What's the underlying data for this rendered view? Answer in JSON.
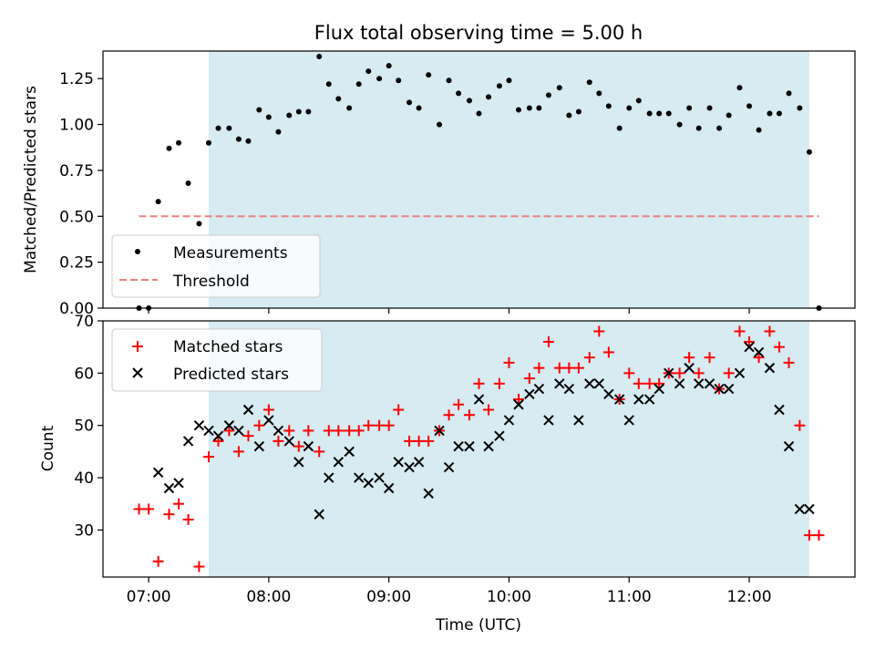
{
  "chart_data": [
    {
      "type": "scatter",
      "title": "Flux total observing time = 5.00 h",
      "xlabel": "",
      "ylabel": "Matched/Predicted stars",
      "xlim": [
        6.62,
        12.88
      ],
      "ylim": [
        0,
        1.4
      ],
      "yticks": [
        "0.00",
        "0.25",
        "0.50",
        "0.75",
        "1.00",
        "1.25"
      ],
      "ytick_values": [
        0,
        0.25,
        0.5,
        0.75,
        1.0,
        1.25
      ],
      "shaded_region": [
        7.5,
        12.5
      ],
      "legend_placement": "lower-left",
      "series": [
        {
          "name": "Measurements",
          "marker": "dot",
          "color": "#000000",
          "x": [
            6.92,
            7.0,
            7.08,
            7.17,
            7.25,
            7.33,
            7.42,
            7.5,
            7.58,
            7.67,
            7.75,
            7.83,
            7.92,
            8.0,
            8.08,
            8.17,
            8.25,
            8.33,
            8.42,
            8.5,
            8.58,
            8.67,
            8.75,
            8.83,
            8.92,
            9.0,
            9.08,
            9.17,
            9.25,
            9.33,
            9.42,
            9.5,
            9.58,
            9.67,
            9.75,
            9.83,
            9.92,
            10.0,
            10.08,
            10.17,
            10.25,
            10.33,
            10.42,
            10.5,
            10.58,
            10.67,
            10.75,
            10.83,
            10.92,
            11.0,
            11.08,
            11.17,
            11.25,
            11.33,
            11.42,
            11.5,
            11.58,
            11.67,
            11.75,
            11.83,
            11.92,
            12.0,
            12.08,
            12.17,
            12.25,
            12.33,
            12.42,
            12.5,
            12.58
          ],
          "y": [
            0.0,
            0.0,
            0.58,
            0.87,
            0.9,
            0.68,
            0.46,
            0.9,
            0.98,
            0.98,
            0.92,
            0.91,
            1.08,
            1.04,
            0.96,
            1.05,
            1.07,
            1.07,
            1.37,
            1.22,
            1.14,
            1.09,
            1.22,
            1.29,
            1.25,
            1.32,
            1.24,
            1.12,
            1.09,
            1.27,
            1.0,
            1.24,
            1.17,
            1.13,
            1.06,
            1.15,
            1.21,
            1.24,
            1.08,
            1.09,
            1.09,
            1.16,
            1.2,
            1.05,
            1.07,
            1.23,
            1.17,
            1.1,
            0.98,
            1.09,
            1.13,
            1.06,
            1.06,
            1.06,
            1.0,
            1.09,
            0.98,
            1.09,
            0.98,
            1.05,
            1.2,
            1.1,
            0.97,
            1.06,
            1.06,
            1.17,
            1.09,
            0.85,
            0.0
          ]
        },
        {
          "name": "Threshold",
          "marker": "dashed-line",
          "color": "#f08080",
          "x": [
            6.92,
            12.58
          ],
          "y": [
            0.5,
            0.5
          ]
        }
      ]
    },
    {
      "type": "scatter",
      "title": "",
      "xlabel": "Time (UTC)",
      "ylabel": "Count",
      "xlim": [
        6.62,
        12.88
      ],
      "ylim": [
        21,
        70
      ],
      "xticks": [
        "07:00",
        "08:00",
        "09:00",
        "10:00",
        "11:00",
        "12:00"
      ],
      "xtick_values": [
        7,
        8,
        9,
        10,
        11,
        12
      ],
      "yticks": [
        "30",
        "40",
        "50",
        "60",
        "70"
      ],
      "ytick_values": [
        30,
        40,
        50,
        60,
        70
      ],
      "shaded_region": [
        7.5,
        12.5
      ],
      "legend_placement": "upper-left",
      "series": [
        {
          "name": "Matched stars",
          "marker": "plus",
          "color": "#ff0000",
          "x": [
            6.92,
            7.0,
            7.08,
            7.17,
            7.25,
            7.33,
            7.42,
            7.5,
            7.58,
            7.67,
            7.75,
            7.83,
            7.92,
            8.0,
            8.08,
            8.17,
            8.25,
            8.33,
            8.42,
            8.5,
            8.58,
            8.67,
            8.75,
            8.83,
            8.92,
            9.0,
            9.08,
            9.17,
            9.25,
            9.33,
            9.42,
            9.5,
            9.58,
            9.67,
            9.75,
            9.83,
            9.92,
            10.0,
            10.08,
            10.17,
            10.25,
            10.33,
            10.42,
            10.5,
            10.58,
            10.67,
            10.75,
            10.83,
            10.92,
            11.0,
            11.08,
            11.17,
            11.25,
            11.33,
            11.42,
            11.5,
            11.58,
            11.67,
            11.75,
            11.83,
            11.92,
            12.0,
            12.08,
            12.17,
            12.25,
            12.33,
            12.42,
            12.5,
            12.58
          ],
          "y": [
            34,
            34,
            24,
            33,
            35,
            32,
            23,
            44,
            47,
            49,
            45,
            48,
            50,
            53,
            47,
            49,
            46,
            49,
            45,
            49,
            49,
            49,
            49,
            50,
            50,
            50,
            53,
            47,
            47,
            47,
            49,
            52,
            54,
            52,
            58,
            53,
            58,
            62,
            55,
            59,
            61,
            66,
            61,
            61,
            61,
            63,
            68,
            64,
            55,
            60,
            58,
            58,
            58,
            60,
            60,
            63,
            60,
            63,
            57,
            60,
            68,
            66,
            63,
            68,
            65,
            62,
            50,
            29,
            29
          ]
        },
        {
          "name": "Predicted stars",
          "marker": "x",
          "color": "#000000",
          "x": [
            7.08,
            7.17,
            7.25,
            7.33,
            7.42,
            7.5,
            7.58,
            7.67,
            7.75,
            7.83,
            7.92,
            8.0,
            8.08,
            8.17,
            8.25,
            8.33,
            8.42,
            8.5,
            8.58,
            8.67,
            8.75,
            8.83,
            8.92,
            9.0,
            9.08,
            9.17,
            9.25,
            9.33,
            9.42,
            9.5,
            9.58,
            9.67,
            9.75,
            9.83,
            9.92,
            10.0,
            10.08,
            10.17,
            10.25,
            10.33,
            10.42,
            10.5,
            10.58,
            10.67,
            10.75,
            10.83,
            10.92,
            11.0,
            11.08,
            11.17,
            11.25,
            11.33,
            11.42,
            11.5,
            11.58,
            11.67,
            11.75,
            11.83,
            11.92,
            12.0,
            12.08,
            12.17,
            12.25,
            12.33,
            12.42,
            12.5
          ],
          "y": [
            41,
            38,
            39,
            47,
            50,
            49,
            48,
            50,
            49,
            53,
            46,
            51,
            49,
            47,
            43,
            46,
            33,
            40,
            43,
            45,
            40,
            39,
            40,
            38,
            43,
            42,
            43,
            37,
            49,
            42,
            46,
            46,
            55,
            46,
            48,
            51,
            54,
            56,
            57,
            51,
            58,
            57,
            51,
            58,
            58,
            56,
            55,
            51,
            55,
            55,
            57,
            60,
            58,
            61,
            58,
            58,
            57,
            57,
            60,
            65,
            64,
            61,
            53,
            46,
            34,
            34
          ]
        }
      ]
    }
  ]
}
